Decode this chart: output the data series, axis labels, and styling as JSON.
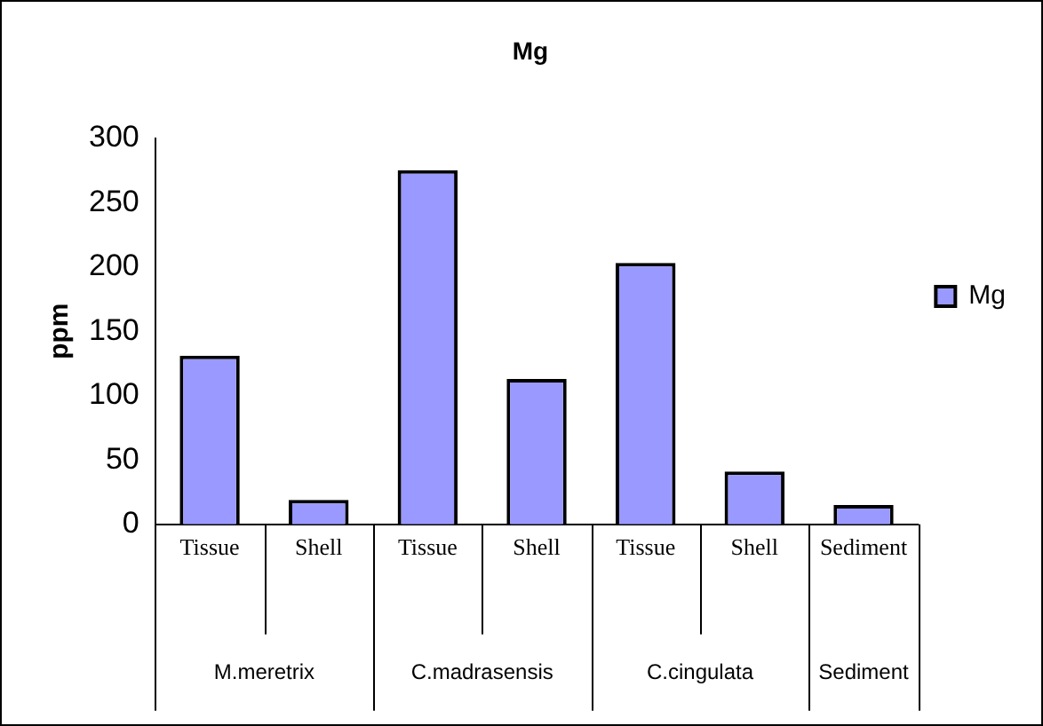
{
  "chart_data": {
    "type": "bar",
    "title": "Mg",
    "ylabel": "ppm",
    "categories": [
      "Tissue",
      "Shell",
      "Tissue",
      "Shell",
      "Tissue",
      "Shell",
      "Sediment"
    ],
    "series": [
      {
        "name": "Mg",
        "color": "#9999ff",
        "values": [
          131,
          19,
          275,
          113,
          203,
          41,
          15
        ]
      }
    ],
    "ylim": [
      0,
      300
    ],
    "yticks": [
      0,
      50,
      100,
      150,
      200,
      250,
      300
    ],
    "grid": false,
    "legend": "right",
    "annotations": [
      "M.meretrix",
      "C.madrasensis",
      "C.cingulata",
      "Sediment"
    ]
  }
}
